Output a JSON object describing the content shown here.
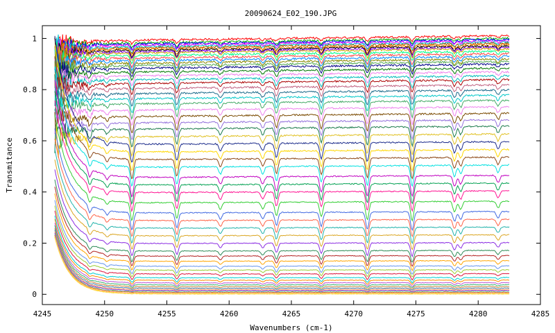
{
  "chart_data": {
    "type": "line",
    "title": "20090624_E02_190.JPG",
    "xlabel": "Wavenumbers (cm-1)",
    "ylabel": "Transmitance",
    "xlim": [
      4245,
      4285
    ],
    "ylim": [
      -0.04,
      1.05
    ],
    "x_data_range": [
      4246,
      4282.5
    ],
    "xticks": [
      4245,
      4250,
      4255,
      4260,
      4265,
      4270,
      4275,
      4280,
      4285
    ],
    "yticks": [
      0,
      0.2,
      0.4,
      0.6,
      0.8,
      1
    ],
    "xtick_labels": [
      "4245",
      "4250",
      "4255",
      "4260",
      "4265",
      "4270",
      "4275",
      "4280",
      "4285"
    ],
    "ytick_labels": [
      "0",
      "0.2",
      "0.4",
      "0.6",
      "0.8",
      "1"
    ],
    "grid": false,
    "legend": "none",
    "absorption_lines": [
      {
        "x": 4248.8,
        "depth": 0.35
      },
      {
        "x": 4250.2,
        "depth": 0.2
      },
      {
        "x": 4252.2,
        "depth": 0.8
      },
      {
        "x": 4255.8,
        "depth": 0.7
      },
      {
        "x": 4259.3,
        "depth": 0.3
      },
      {
        "x": 4262.7,
        "depth": 0.3
      },
      {
        "x": 4263.8,
        "depth": 0.6
      },
      {
        "x": 4267.4,
        "depth": 0.65
      },
      {
        "x": 4271.1,
        "depth": 0.8
      },
      {
        "x": 4274.7,
        "depth": 0.85
      },
      {
        "x": 4278.1,
        "depth": 0.45
      },
      {
        "x": 4278.6,
        "depth": 0.35
      },
      {
        "x": 4281.6,
        "depth": 0.3
      }
    ],
    "series_baselines": [
      1.0,
      0.99,
      0.985,
      0.98,
      0.975,
      0.97,
      0.965,
      0.96,
      0.955,
      0.95,
      0.94,
      0.93,
      0.92,
      0.91,
      0.9,
      0.89,
      0.875,
      0.86,
      0.845,
      0.83,
      0.81,
      0.79,
      0.77,
      0.75,
      0.725,
      0.7,
      0.675,
      0.65,
      0.62,
      0.59,
      0.56,
      0.53,
      0.5,
      0.46,
      0.43,
      0.4,
      0.36,
      0.32,
      0.29,
      0.26,
      0.23,
      0.2,
      0.17,
      0.15,
      0.13,
      0.11,
      0.095,
      0.08,
      0.065,
      0.055,
      0.045,
      0.037,
      0.03,
      0.024,
      0.019,
      0.015,
      0.011,
      0.008,
      0.005,
      0.003,
      0.001
    ],
    "series_colors": [
      "#ff0000",
      "#00aa00",
      "#0000ff",
      "#ff00ff",
      "#00cccc",
      "#aa5500",
      "#ff8800",
      "#000000",
      "#8800ff",
      "#ccaa00",
      "#00ff88",
      "#ff4444",
      "#0088ff",
      "#888800",
      "#55aa55",
      "#000088",
      "#007700",
      "#ee82ee",
      "#00bbbb",
      "#aa0000",
      "#c06080",
      "#1a6a8a",
      "#00c8c8",
      "#44aa66",
      "#ee82ee",
      "#7a4a00",
      "#9370db",
      "#1a7a4a",
      "#e0c020",
      "#1a2a8a",
      "#ffd700",
      "#8b4513",
      "#00e0e0",
      "#c000c0",
      "#00a050",
      "#ff1493",
      "#32cd32",
      "#4169e1",
      "#ff6347",
      "#20b2aa",
      "#daa520",
      "#8a2be2",
      "#2e8b57",
      "#b22222",
      "#ffa500",
      "#6495ed",
      "#9acd32",
      "#dc143c",
      "#00ced1",
      "#ff8c00",
      "#ba55d3",
      "#3cb371",
      "#cd853f",
      "#4682b4",
      "#f4a460",
      "#9932cc",
      "#66cdaa",
      "#d2691e",
      "#ffb6c1",
      "#ffcc00",
      "#ffdd66"
    ]
  }
}
